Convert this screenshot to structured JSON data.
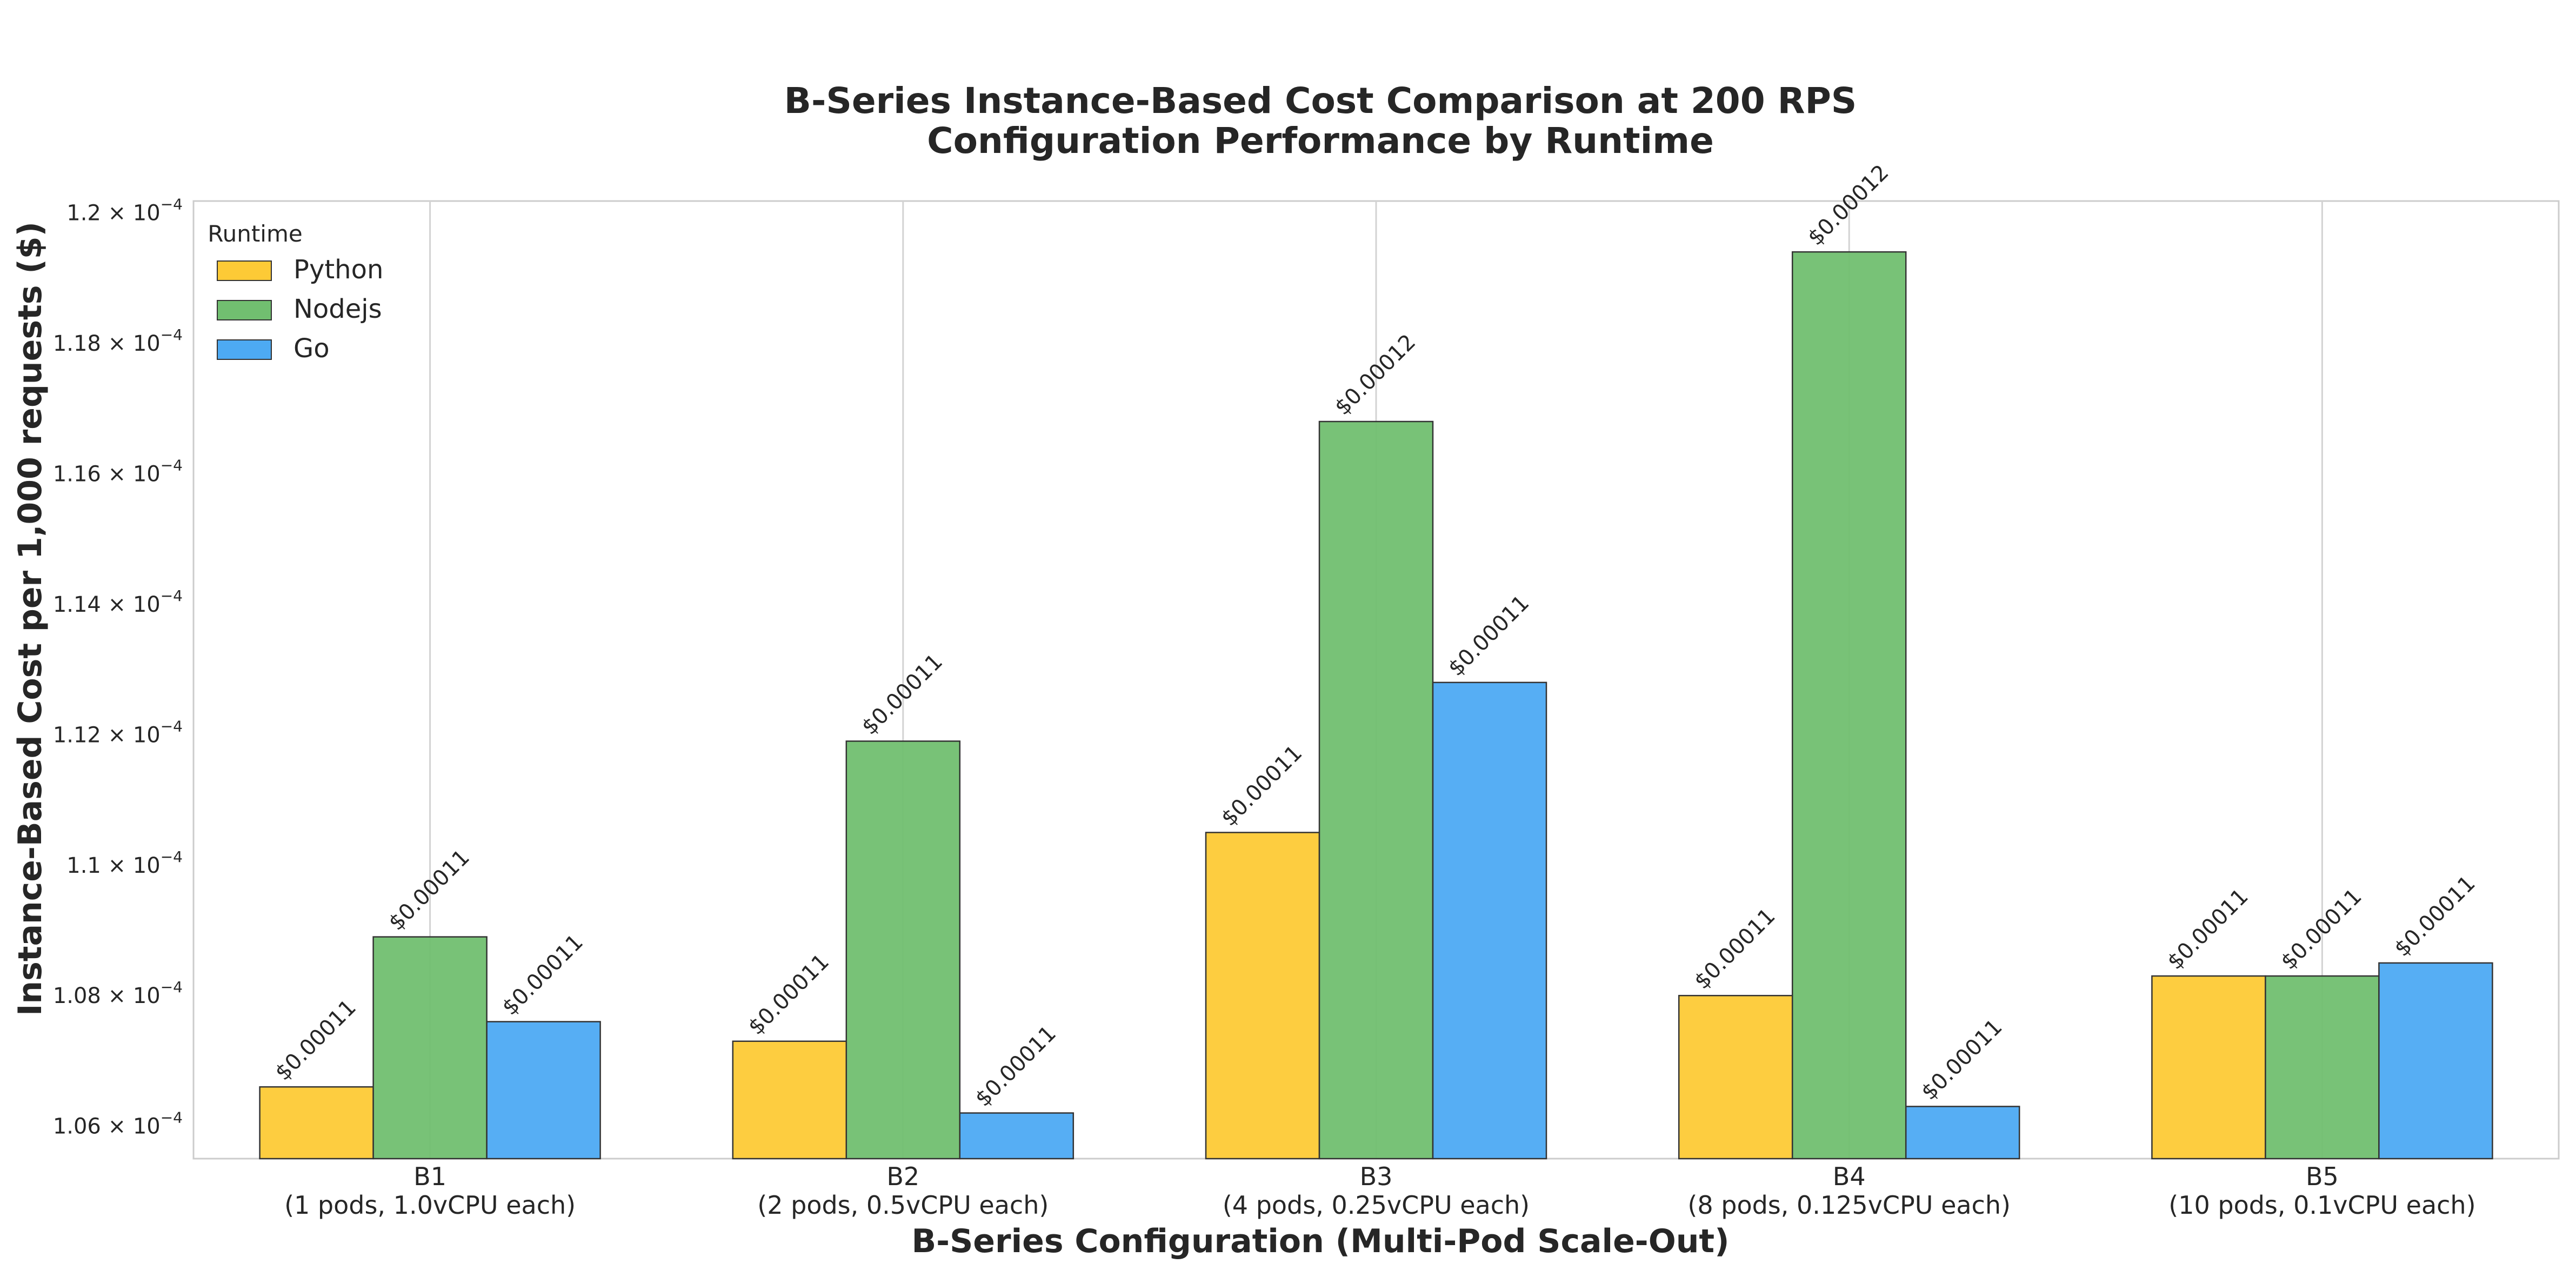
{
  "chart_data": {
    "type": "bar",
    "title": "B-Series Instance-Based Cost Comparison at 200 RPS",
    "subtitle": "Configuration Performance by Runtime",
    "xlabel": "B-Series Configuration (Multi-Pod Scale-Out)",
    "ylabel": "Instance-Based Cost per 1,000 requests ($)",
    "categories": [
      {
        "name": "B1",
        "detail": "(1 pods, 1.0vCPU each)"
      },
      {
        "name": "B2",
        "detail": "(2 pods, 0.5vCPU each)"
      },
      {
        "name": "B3",
        "detail": "(4 pods, 0.25vCPU each)"
      },
      {
        "name": "B4",
        "detail": "(8 pods, 0.125vCPU each)"
      },
      {
        "name": "B5",
        "detail": "(10 pods, 0.1vCPU each)"
      }
    ],
    "legend_title": "Runtime",
    "legend_position": "top-left",
    "grid": "vertical",
    "ylim": [
      0.0001055,
      0.00012018
    ],
    "yticks": [
      {
        "value": 0.000106,
        "mantissa": "1.06",
        "exp": "−4"
      },
      {
        "value": 0.000108,
        "mantissa": "1.08",
        "exp": "−4"
      },
      {
        "value": 0.00011,
        "mantissa": "1.1",
        "exp": "−4"
      },
      {
        "value": 0.000112,
        "mantissa": "1.12",
        "exp": "−4"
      },
      {
        "value": 0.000114,
        "mantissa": "1.14",
        "exp": "−4"
      },
      {
        "value": 0.000116,
        "mantissa": "1.16",
        "exp": "−4"
      },
      {
        "value": 0.000118,
        "mantissa": "1.18",
        "exp": "−4"
      },
      {
        "value": 0.00012,
        "mantissa": "1.2",
        "exp": "−4"
      }
    ],
    "series": [
      {
        "name": "Python",
        "color": "#fdca36",
        "values": [
          0.0001066,
          0.0001073,
          0.0001105,
          0.000108,
          0.0001083
        ],
        "labels": [
          "$0.00011",
          "$0.00011",
          "$0.00011",
          "$0.00011",
          "$0.00011"
        ]
      },
      {
        "name": "Nodejs",
        "color": "#71bf70",
        "values": [
          0.0001089,
          0.0001119,
          0.0001168,
          0.0001194,
          0.0001083
        ],
        "labels": [
          "$0.00011",
          "$0.00011",
          "$0.00012",
          "$0.00012",
          "$0.00011"
        ]
      },
      {
        "name": "Go",
        "color": "#4daaf3",
        "values": [
          0.0001076,
          0.0001062,
          0.0001128,
          0.0001063,
          0.0001085
        ],
        "labels": [
          "$0.00011",
          "$0.00011",
          "$0.00011",
          "$0.00011",
          "$0.00011"
        ]
      }
    ]
  }
}
